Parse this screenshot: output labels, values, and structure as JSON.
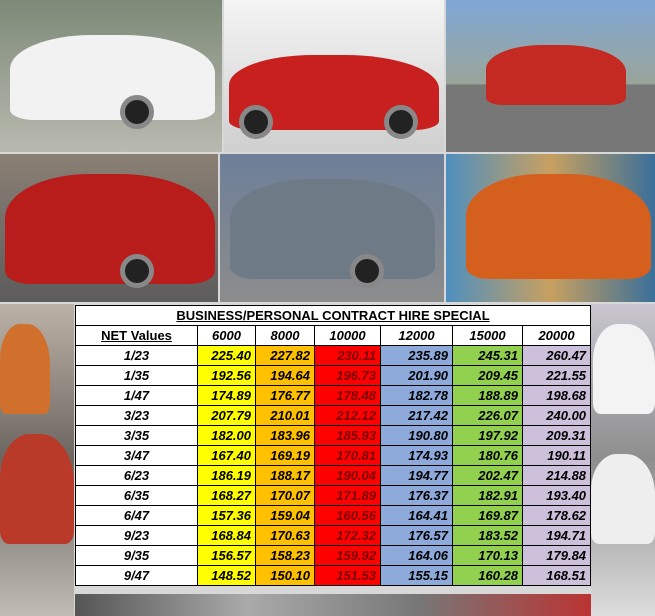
{
  "table": {
    "title": "BUSINESS/PERSONAL CONTRACT HIRE SPECIAL",
    "header": [
      "NET Values",
      "6000",
      "8000",
      "10000",
      "12000",
      "15000",
      "20000"
    ],
    "rows": [
      [
        "1/23",
        "225.40",
        "227.82",
        "230.11",
        "235.89",
        "245.31",
        "260.47"
      ],
      [
        "1/35",
        "192.56",
        "194.64",
        "196.73",
        "201.90",
        "209.45",
        "221.55"
      ],
      [
        "1/47",
        "174.89",
        "176.77",
        "178.48",
        "182.78",
        "188.89",
        "198.68"
      ],
      [
        "3/23",
        "207.79",
        "210.01",
        "212.12",
        "217.42",
        "226.07",
        "240.00"
      ],
      [
        "3/35",
        "182.00",
        "183.96",
        "185.93",
        "190.80",
        "197.92",
        "209.31"
      ],
      [
        "3/47",
        "167.40",
        "169.19",
        "170.81",
        "174.93",
        "180.76",
        "190.11"
      ],
      [
        "6/23",
        "186.19",
        "188.17",
        "190.04",
        "194.77",
        "202.47",
        "214.88"
      ],
      [
        "6/35",
        "168.27",
        "170.07",
        "171.89",
        "176.37",
        "182.91",
        "193.40"
      ],
      [
        "6/47",
        "157.36",
        "159.04",
        "160.56",
        "164.41",
        "169.87",
        "178.62"
      ],
      [
        "9/23",
        "168.84",
        "170.63",
        "172.32",
        "176.57",
        "183.52",
        "194.71"
      ],
      [
        "9/35",
        "156.57",
        "158.23",
        "159.92",
        "164.06",
        "170.13",
        "179.84"
      ],
      [
        "9/47",
        "148.52",
        "150.10",
        "151.53",
        "155.15",
        "160.28",
        "168.51"
      ]
    ]
  }
}
